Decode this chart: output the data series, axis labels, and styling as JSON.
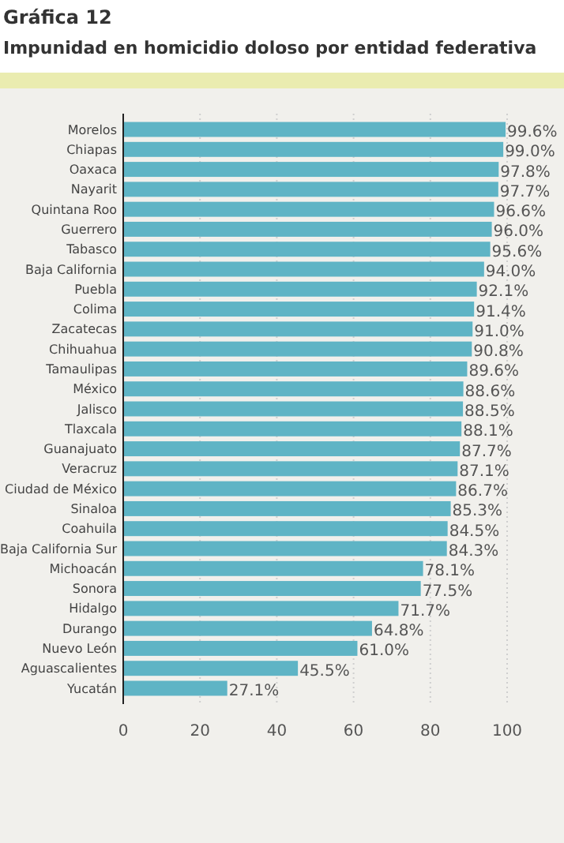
{
  "chart_data": {
    "type": "bar",
    "orientation": "horizontal",
    "title": "Gráfica 12",
    "subtitle": "Impunidad en homicidio doloso por entidad federativa",
    "categories": [
      "Morelos",
      "Chiapas",
      "Oaxaca",
      "Nayarit",
      "Quintana Roo",
      "Guerrero",
      "Tabasco",
      "Baja California",
      "Puebla",
      "Colima",
      "Zacatecas",
      "Chihuahua",
      "Tamaulipas",
      "México",
      "Jalisco",
      "Tlaxcala",
      "Guanajuato",
      "Veracruz",
      "Ciudad de México",
      "Sinaloa",
      "Coahuila",
      "Baja California Sur",
      "Michoacán",
      "Sonora",
      "Hidalgo",
      "Durango",
      "Nuevo León",
      "Aguascalientes",
      "Yucatán"
    ],
    "values": [
      99.6,
      99.0,
      97.8,
      97.7,
      96.6,
      96.0,
      95.6,
      94.0,
      92.1,
      91.4,
      91.0,
      90.8,
      89.6,
      88.6,
      88.5,
      88.1,
      87.7,
      87.1,
      86.7,
      85.3,
      84.5,
      84.3,
      78.1,
      77.5,
      71.7,
      64.8,
      61.0,
      45.5,
      27.1
    ],
    "value_labels": [
      "99.6%",
      "99.0%",
      "97.8%",
      "97.7%",
      "96.6%",
      "96.0%",
      "95.6%",
      "94.0%",
      "92.1%",
      "91.4%",
      "91.0%",
      "90.8%",
      "89.6%",
      "88.6%",
      "88.5%",
      "88.1%",
      "87.7%",
      "87.1%",
      "86.7%",
      "85.3%",
      "84.5%",
      "84.3%",
      "78.1%",
      "77.5%",
      "71.7%",
      "64.8%",
      "61.0%",
      "45.5%",
      "27.1%"
    ],
    "color": "#5fb4c5",
    "xlim": [
      0,
      100
    ],
    "xticks": [
      0,
      20,
      40,
      60,
      80,
      100
    ],
    "grid": "x"
  }
}
